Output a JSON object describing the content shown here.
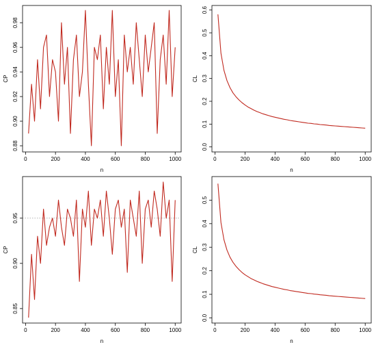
{
  "chart_data": [
    {
      "type": "line",
      "xlabel": "n",
      "ylabel": "CP",
      "color": "#c0281e",
      "x": [
        20,
        40,
        60,
        80,
        100,
        120,
        140,
        160,
        180,
        200,
        220,
        240,
        260,
        280,
        300,
        320,
        340,
        360,
        380,
        400,
        420,
        440,
        460,
        480,
        500,
        520,
        540,
        560,
        580,
        600,
        620,
        640,
        660,
        680,
        700,
        720,
        740,
        760,
        780,
        800,
        820,
        840,
        860,
        880,
        900,
        920,
        940,
        960,
        980,
        1000
      ],
      "values": [
        0.89,
        0.93,
        0.9,
        0.95,
        0.91,
        0.96,
        0.97,
        0.92,
        0.95,
        0.94,
        0.9,
        0.98,
        0.93,
        0.96,
        0.89,
        0.95,
        0.97,
        0.92,
        0.94,
        0.99,
        0.93,
        0.88,
        0.96,
        0.95,
        0.97,
        0.91,
        0.96,
        0.93,
        0.99,
        0.92,
        0.95,
        0.88,
        0.97,
        0.94,
        0.96,
        0.93,
        0.98,
        0.95,
        0.92,
        0.97,
        0.94,
        0.96,
        0.98,
        0.89,
        0.95,
        0.97,
        0.93,
        0.99,
        0.92,
        0.96
      ],
      "xlim": [
        -20,
        1040
      ],
      "xticks": [
        0,
        200,
        400,
        600,
        800,
        1000
      ],
      "ylim": [
        0.875,
        0.994
      ],
      "yticks": [
        {
          "value": 0.88,
          "label": "0.88"
        },
        {
          "value": 0.9,
          "label": "0.90"
        },
        0.92,
        0.94,
        0.96,
        0.98
      ]
    },
    {
      "type": "line",
      "xlabel": "n",
      "ylabel": "CL",
      "color": "#c0281e",
      "x": [
        20,
        40,
        60,
        80,
        100,
        120,
        140,
        160,
        180,
        200,
        220,
        240,
        260,
        280,
        300,
        320,
        340,
        360,
        380,
        400,
        420,
        440,
        460,
        480,
        500,
        520,
        540,
        560,
        580,
        600,
        620,
        640,
        660,
        680,
        700,
        720,
        740,
        760,
        780,
        800,
        820,
        840,
        860,
        880,
        900,
        920,
        940,
        960,
        980,
        1000
      ],
      "values": [
        0.581,
        0.411,
        0.336,
        0.291,
        0.26,
        0.237,
        0.22,
        0.206,
        0.194,
        0.184,
        0.175,
        0.168,
        0.161,
        0.155,
        0.15,
        0.145,
        0.141,
        0.137,
        0.133,
        0.13,
        0.127,
        0.124,
        0.121,
        0.119,
        0.116,
        0.114,
        0.112,
        0.11,
        0.108,
        0.106,
        0.104,
        0.103,
        0.101,
        0.1,
        0.098,
        0.097,
        0.096,
        0.094,
        0.093,
        0.092,
        0.091,
        0.09,
        0.089,
        0.088,
        0.087,
        0.086,
        0.085,
        0.084,
        0.083,
        0.082
      ],
      "xlim": [
        -20,
        1040
      ],
      "xticks": [
        0,
        200,
        400,
        600,
        800,
        1000
      ],
      "ylim": [
        -0.022,
        0.62
      ],
      "yticks": [
        {
          "value": 0,
          "label": "0.0"
        },
        0.1,
        0.2,
        0.3,
        0.4,
        0.5,
        0.6
      ]
    },
    {
      "type": "line",
      "xlabel": "n",
      "ylabel": "CP",
      "color": "#c0281e",
      "reference_line": 0.95,
      "x": [
        20,
        40,
        60,
        80,
        100,
        120,
        140,
        160,
        180,
        200,
        220,
        240,
        260,
        280,
        300,
        320,
        340,
        360,
        380,
        400,
        420,
        440,
        460,
        480,
        500,
        520,
        540,
        560,
        580,
        600,
        620,
        640,
        660,
        680,
        700,
        720,
        740,
        760,
        780,
        800,
        820,
        840,
        860,
        880,
        900,
        920,
        940,
        960,
        980,
        1000
      ],
      "values": [
        0.84,
        0.91,
        0.86,
        0.93,
        0.9,
        0.96,
        0.92,
        0.94,
        0.95,
        0.93,
        0.97,
        0.94,
        0.92,
        0.96,
        0.95,
        0.93,
        0.97,
        0.88,
        0.96,
        0.94,
        0.98,
        0.92,
        0.96,
        0.95,
        0.97,
        0.93,
        0.98,
        0.95,
        0.91,
        0.96,
        0.97,
        0.94,
        0.96,
        0.89,
        0.97,
        0.95,
        0.93,
        0.98,
        0.9,
        0.96,
        0.97,
        0.94,
        0.98,
        0.96,
        0.93,
        0.99,
        0.95,
        0.97,
        0.88,
        0.97
      ],
      "xlim": [
        -20,
        1040
      ],
      "xticks": [
        0,
        200,
        400,
        600,
        800,
        1000
      ],
      "ylim": [
        0.834,
        0.996
      ],
      "yticks": [
        0.85,
        {
          "value": 0.9,
          "label": "0.90"
        },
        0.95
      ]
    },
    {
      "type": "line",
      "xlabel": "n",
      "ylabel": "CL",
      "color": "#c0281e",
      "x": [
        20,
        40,
        60,
        80,
        100,
        120,
        140,
        160,
        180,
        200,
        220,
        240,
        260,
        280,
        300,
        320,
        340,
        360,
        380,
        400,
        420,
        440,
        460,
        480,
        500,
        520,
        540,
        560,
        580,
        600,
        620,
        640,
        660,
        680,
        700,
        720,
        740,
        760,
        780,
        800,
        820,
        840,
        860,
        880,
        900,
        920,
        940,
        960,
        980,
        1000
      ],
      "values": [
        0.57,
        0.405,
        0.332,
        0.288,
        0.258,
        0.236,
        0.219,
        0.205,
        0.193,
        0.183,
        0.175,
        0.167,
        0.161,
        0.155,
        0.15,
        0.145,
        0.141,
        0.137,
        0.133,
        0.13,
        0.127,
        0.124,
        0.121,
        0.119,
        0.116,
        0.114,
        0.112,
        0.11,
        0.108,
        0.106,
        0.104,
        0.103,
        0.101,
        0.1,
        0.098,
        0.097,
        0.096,
        0.094,
        0.093,
        0.092,
        0.091,
        0.09,
        0.089,
        0.088,
        0.087,
        0.086,
        0.085,
        0.084,
        0.083,
        0.082
      ],
      "xlim": [
        -20,
        1040
      ],
      "xticks": [
        0,
        200,
        400,
        600,
        800,
        1000
      ],
      "ylim": [
        -0.022,
        0.6
      ],
      "yticks": [
        {
          "value": 0,
          "label": "0.0"
        },
        0.1,
        0.2,
        0.3,
        0.4,
        0.5
      ]
    }
  ]
}
